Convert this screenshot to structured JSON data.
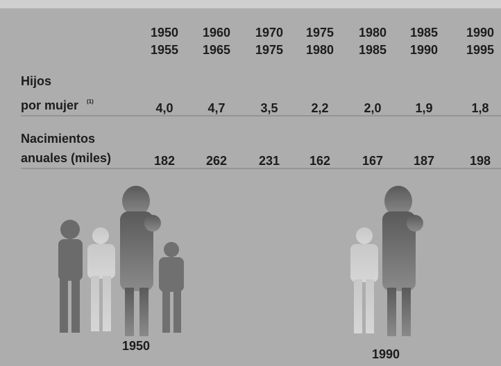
{
  "table": {
    "columns": [
      [
        "1950",
        "1955"
      ],
      [
        "1960",
        "1965"
      ],
      [
        "1970",
        "1975"
      ],
      [
        "1975",
        "1980"
      ],
      [
        "1980",
        "1985"
      ],
      [
        "1985",
        "1990"
      ],
      [
        "1990",
        "1995"
      ]
    ],
    "rows": [
      {
        "label": [
          "Hijos",
          "por mujer"
        ],
        "note": "(1)",
        "values": [
          "4,0",
          "4,7",
          "3,5",
          "2,2",
          "2,0",
          "1,9",
          "1,8"
        ]
      },
      {
        "label": [
          "Nacimientos",
          "anuales (miles)"
        ],
        "values": [
          "182",
          "262",
          "231",
          "162",
          "167",
          "187",
          "198"
        ]
      }
    ]
  },
  "figures": [
    {
      "caption": "1950"
    },
    {
      "caption": "1990"
    }
  ]
}
